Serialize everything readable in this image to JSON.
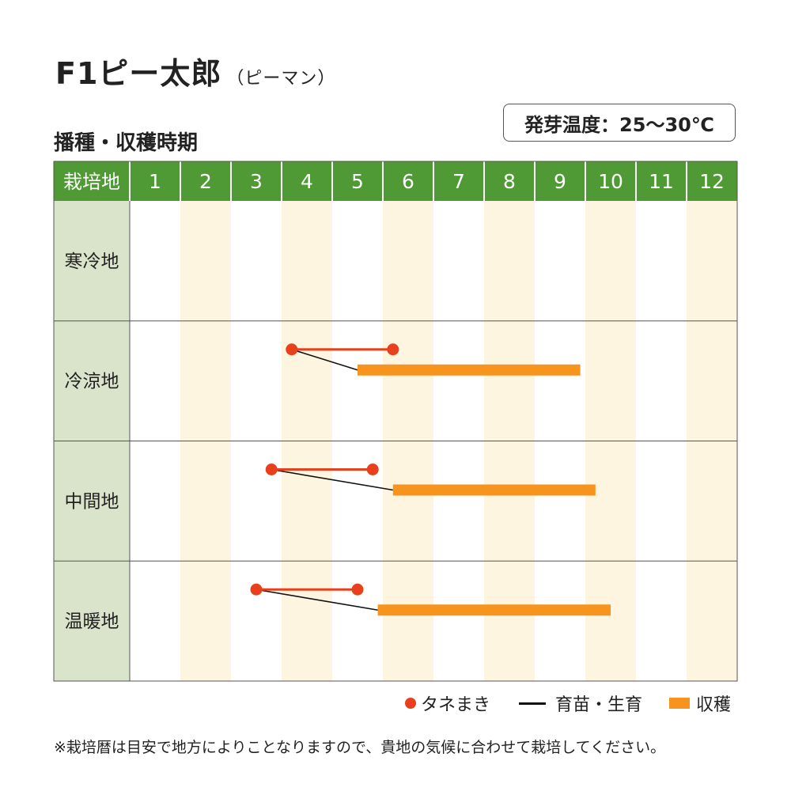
{
  "title": "F1ピー太郎",
  "title_sub": "（ピーマン）",
  "subtitle": "播種・収穫時期",
  "germination_temp": "発芽温度：25〜30℃",
  "legend": {
    "sowing": "タネまき",
    "nursery": "育苗・生育",
    "harvest": "収穫"
  },
  "note": "※栽培暦は目安で地方によりことなりますので、貴地の気候に合わせて栽培してください。",
  "colors": {
    "header_green": "#4f9a34",
    "row_header": "#d9e4cb",
    "stripe": "#fdf5df",
    "sowing_red": "#e8401c",
    "harvest_orange": "#f7941d"
  },
  "chart_data": {
    "type": "gantt",
    "header_label": "栽培地",
    "months": [
      "1",
      "2",
      "3",
      "4",
      "5",
      "6",
      "7",
      "8",
      "9",
      "10",
      "11",
      "12"
    ],
    "regions": [
      {
        "name": "寒冷地",
        "sowing": null,
        "harvest": null
      },
      {
        "name": "冷涼地",
        "sowing": [
          4.2,
          6.2
        ],
        "harvest": [
          5.5,
          9.9
        ]
      },
      {
        "name": "中間地",
        "sowing": [
          3.8,
          5.8
        ],
        "harvest": [
          6.2,
          10.2
        ]
      },
      {
        "name": "温暖地",
        "sowing": [
          3.5,
          5.5
        ],
        "harvest": [
          5.9,
          10.5
        ]
      }
    ]
  }
}
